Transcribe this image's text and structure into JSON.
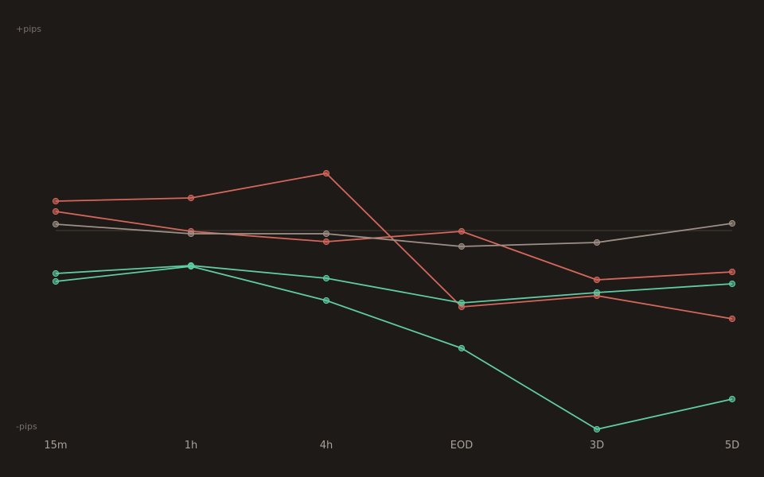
{
  "chart_data": {
    "type": "line",
    "title": "",
    "xlabel": "",
    "ylabel": "",
    "y_top_label": "+pips",
    "y_bottom_label": "-pips",
    "categories": [
      "15m",
      "1h",
      "4h",
      "EOD",
      "3D",
      "5D"
    ],
    "ylim": [
      -100,
      100
    ],
    "baseline": 0,
    "grid": false,
    "legend": "none",
    "series": [
      {
        "color": "#d4675c",
        "values": [
          14.8,
          16.4,
          28.8,
          -38.4,
          -32.8,
          -44.4
        ]
      },
      {
        "color": "#d4675c",
        "values": [
          9.6,
          -0.4,
          -5.6,
          -0.4,
          -24.8,
          -20.8
        ]
      },
      {
        "color": "#9e9087",
        "values": [
          3.2,
          -1.6,
          -1.6,
          -8.0,
          -6.0,
          3.6
        ]
      },
      {
        "color": "#5fcca3",
        "values": [
          -21.6,
          -17.6,
          -24.0,
          -36.4,
          -31.2,
          -26.8
        ]
      },
      {
        "color": "#5fcca3",
        "values": [
          -25.6,
          -18.0,
          -35.2,
          -59.2,
          -100.0,
          -84.8
        ]
      }
    ]
  }
}
